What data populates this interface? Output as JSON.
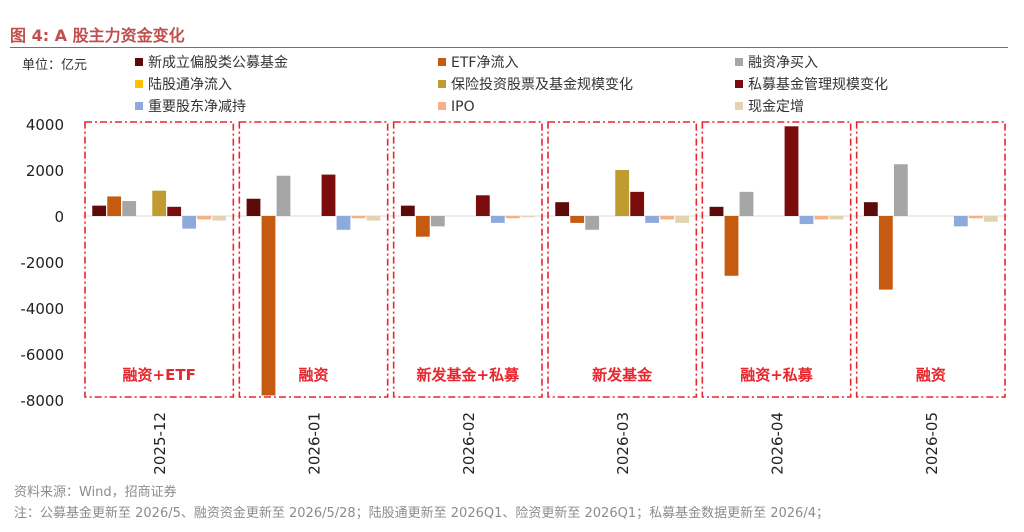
{
  "figure_title": "图 4:  A 股主力资金变化",
  "source": "资料来源：Wind，招商证券",
  "footnote": "注：公募基金更新至 2026/5、融资资金更新至 2026/5/28；陆股通更新至 2026Q1、险资更新至 2026Q1；私募基金数据更新至 2026/4；",
  "colors": {
    "accent": "#c0504d",
    "box": "#e8262d",
    "box_label": "#e8262d"
  },
  "chart_data": {
    "type": "bar",
    "unit_label": "单位：亿元",
    "categories": [
      "2025-12",
      "2026-01",
      "2026-02",
      "2026-03",
      "2026-04",
      "2026-05"
    ],
    "ylim": [
      -8000,
      4000
    ],
    "yticks": [
      4000,
      2000,
      0,
      -2000,
      -4000,
      -6000,
      -8000
    ],
    "yticklabels": [
      "4000",
      "2000",
      "0",
      "-2000",
      "-4000",
      "-6000",
      "-8000"
    ],
    "grid": false,
    "legend_position": "top",
    "series": [
      {
        "name": "新成立偏股类公募基金",
        "color": "#5c0a0a",
        "values": [
          450,
          750,
          450,
          600,
          400,
          600
        ]
      },
      {
        "name": "ETF净流入",
        "color": "#c55a11",
        "values": [
          850,
          -7800,
          -900,
          -300,
          -2600,
          -3200
        ]
      },
      {
        "name": "融资净买入",
        "color": "#a6a6a6",
        "values": [
          650,
          1750,
          -450,
          -600,
          1050,
          2250
        ]
      },
      {
        "name": "陆股通净流入",
        "color": "#ffc000",
        "values": [
          null,
          null,
          null,
          null,
          null,
          null
        ]
      },
      {
        "name": "保险投资股票及基金规模变化",
        "color": "#bf9b30",
        "values": [
          1100,
          null,
          null,
          2000,
          null,
          null
        ]
      },
      {
        "name": "私募基金管理规模变化",
        "color": "#7b0c0c",
        "values": [
          400,
          1800,
          900,
          1050,
          3900,
          null
        ]
      },
      {
        "name": "重要股东净减持",
        "color": "#8ea9db",
        "values": [
          -550,
          -600,
          -300,
          -300,
          -350,
          -450
        ]
      },
      {
        "name": "IPO",
        "color": "#f4b183",
        "values": [
          -150,
          -100,
          -100,
          -150,
          -150,
          -100
        ]
      },
      {
        "name": "现金定增",
        "color": "#e2d4b0",
        "values": [
          -200,
          -200,
          -50,
          -300,
          -150,
          -250
        ]
      }
    ],
    "annotations": [
      "融资+ETF",
      "融资",
      "新发基金+私募",
      "新发基金",
      "融资+私募",
      "融资"
    ]
  }
}
